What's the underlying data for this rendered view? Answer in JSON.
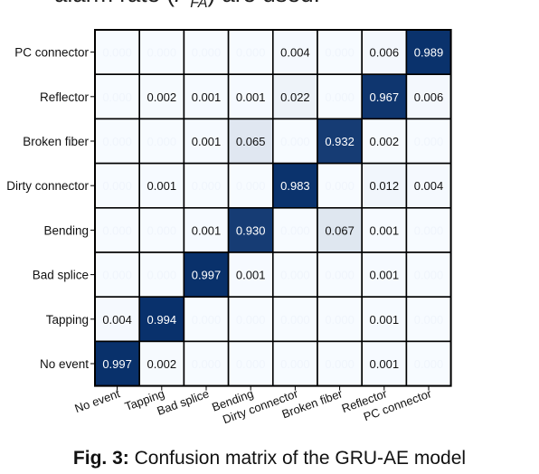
{
  "top_fragment": "alarm rate (",
  "top_fragment_math": "P",
  "top_fragment_sub": "FA",
  "top_fragment_end": ") are used.",
  "caption": {
    "label": "Fig. 3:",
    "text": " Confusion matrix of the GRU-AE model"
  },
  "colors": {
    "low": "#f7fbff",
    "high": "#08306b"
  },
  "chart_data": {
    "type": "heatmap",
    "row_labels": [
      "PC connector",
      "Reflector",
      "Broken fiber",
      "Dirty connector",
      "Bending",
      "Bad splice",
      "Tapping",
      "No event"
    ],
    "col_labels": [
      "No event",
      "Tapping",
      "Bad splice",
      "Bending",
      "Dirty connector",
      "Broken fiber",
      "Reflector",
      "PC connector"
    ],
    "values": [
      [
        0.0,
        0.0,
        0.0,
        0.0,
        0.004,
        0.0,
        0.006,
        0.989
      ],
      [
        0.0,
        0.002,
        0.001,
        0.001,
        0.022,
        0.0,
        0.967,
        0.006
      ],
      [
        0.0,
        0.0,
        0.001,
        0.065,
        0.0,
        0.932,
        0.002,
        0.0
      ],
      [
        0.0,
        0.001,
        0.0,
        0.0,
        0.983,
        0.0,
        0.012,
        0.004
      ],
      [
        0.0,
        0.0,
        0.001,
        0.93,
        0.0,
        0.067,
        0.001,
        0.0
      ],
      [
        0.0,
        0.0,
        0.997,
        0.001,
        0.0,
        0.0,
        0.001,
        0.0
      ],
      [
        0.004,
        0.994,
        0.0,
        0.0,
        0.0,
        0.0,
        0.001,
        0.0
      ],
      [
        0.997,
        0.002,
        0.0,
        0.0,
        0.0,
        0.0,
        0.001,
        0.0
      ]
    ],
    "cell_labels": [
      [
        "0.000",
        "0.000",
        "0.000",
        "0.000",
        "0.004",
        "0.000",
        "0.006",
        "0.989"
      ],
      [
        "0.000",
        "0.002",
        "0.001",
        "0.001",
        "0.022",
        "0.000",
        "0.967",
        "0.006"
      ],
      [
        "0.000",
        "0.000",
        "0.001",
        "0.065",
        "0.000",
        "0.932",
        "0.002",
        "0.000"
      ],
      [
        "0.000",
        "0.001",
        "0.000",
        "0.000",
        "0.983",
        "0.000",
        "0.012",
        "0.004"
      ],
      [
        "0.000",
        "0.000",
        "0.001",
        "0.930",
        "0.000",
        "0.067",
        "0.001",
        "0.000"
      ],
      [
        "0.000",
        "0.000",
        "0.997",
        "0.001",
        "0.000",
        "0.000",
        "0.001",
        "0.000"
      ],
      [
        "0.004",
        "0.994",
        "0.000",
        "0.000",
        "0.000",
        "0.000",
        "0.001",
        "0.000"
      ],
      [
        "0.997",
        "0.002",
        "0.000",
        "0.000",
        "0.000",
        "0.000",
        "0.001",
        "0.000"
      ]
    ],
    "vmin": 0,
    "vmax": 1,
    "title": "",
    "xlabel": "",
    "ylabel": ""
  }
}
